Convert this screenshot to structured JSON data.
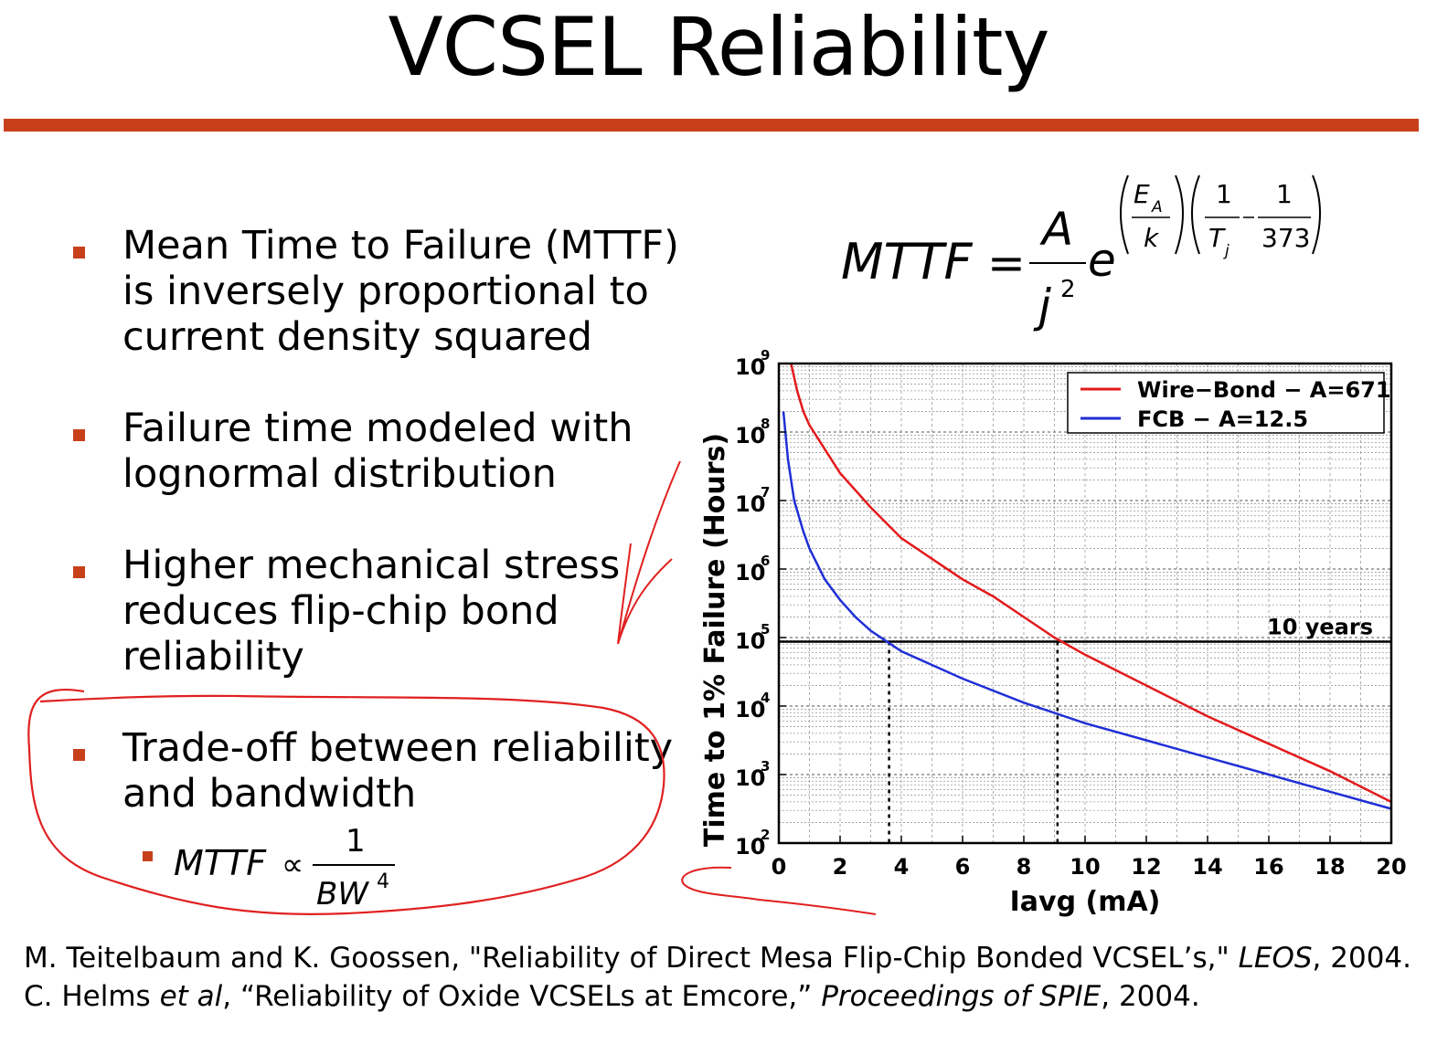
{
  "title": "VCSEL Reliability",
  "colors": {
    "accent": "#c8401a",
    "wire_bond": "#e31a1c",
    "fcb": "#1f2fd6",
    "annotation": "#e02020"
  },
  "bullets": [
    {
      "lines": [
        "Mean Time to Failure (MTTF)",
        "is inversely proportional to",
        "current density squared"
      ]
    },
    {
      "lines": [
        "Failure time modeled with",
        "lognormal distribution"
      ]
    },
    {
      "lines": [
        "Higher mechanical stress",
        "reduces flip-chip bond",
        "reliability"
      ]
    },
    {
      "lines": [
        "Trade-off between reliability",
        "and bandwidth"
      ]
    }
  ],
  "equation_main": {
    "lhs": "MTTF",
    "eq": "=",
    "num": "A",
    "den": "j",
    "den_exp": "2",
    "base": "e",
    "ea": "E",
    "ea_sub": "A",
    "k": "k",
    "one_a": "1",
    "tj": "T",
    "tj_sub": "j",
    "one_b": "1",
    "t373": "373"
  },
  "equation_sub": {
    "lhs": "MTTF",
    "prop": "∝",
    "num": "1",
    "den": "BW",
    "den_exp": "4"
  },
  "chart_data": {
    "type": "line",
    "title": "",
    "xlabel": "Iavg (mA)",
    "ylabel": "Time to 1% Failure (Hours)",
    "xlim": [
      0,
      20
    ],
    "ylim_log10": [
      2,
      9
    ],
    "yscale": "log",
    "x_ticks": [
      "0",
      "2",
      "4",
      "6",
      "8",
      "10",
      "12",
      "14",
      "16",
      "18",
      "20"
    ],
    "y_tick_base": "10",
    "y_tick_exps": [
      "2",
      "3",
      "4",
      "5",
      "6",
      "7",
      "8",
      "9"
    ],
    "grid": true,
    "legend_position": "top-right",
    "series": [
      {
        "name": "Wire−Bond − A=671",
        "color": "#e31a1c",
        "x": [
          0.4,
          0.6,
          0.8,
          1.0,
          1.5,
          2.0,
          3.0,
          4.0,
          5.0,
          6.0,
          7.0,
          8.0,
          9.0,
          10.0,
          12.0,
          14.0,
          16.0,
          18.0,
          20.0
        ],
        "log10_y": [
          9.0,
          8.6,
          8.3,
          8.1,
          7.75,
          7.4,
          6.9,
          6.45,
          6.15,
          5.85,
          5.6,
          5.3,
          5.0,
          4.75,
          4.3,
          3.85,
          3.45,
          3.05,
          2.6
        ]
      },
      {
        "name": "FCB − A=12.5",
        "color": "#1f2fd6",
        "x": [
          0.15,
          0.3,
          0.5,
          0.8,
          1.0,
          1.5,
          2.0,
          2.5,
          3.0,
          3.5,
          4.0,
          5.0,
          6.0,
          8.0,
          9.0,
          10.0,
          12.0,
          14.0,
          16.0,
          18.0,
          20.0
        ],
        "log10_y": [
          8.3,
          7.6,
          7.0,
          6.55,
          6.3,
          5.85,
          5.55,
          5.3,
          5.1,
          4.95,
          4.8,
          4.6,
          4.4,
          4.05,
          3.9,
          3.75,
          3.5,
          3.25,
          3.0,
          2.75,
          2.5
        ]
      }
    ],
    "reference_line": {
      "label": "10 years",
      "log10_y": 4.94
    },
    "intersections_x": [
      3.6,
      9.1
    ]
  },
  "references": [
    {
      "pre": "M. Teitelbaum and K. Goossen, \"Reliability of Direct Mesa Flip-Chip Bonded VCSEL’s,\" ",
      "ital": "LEOS",
      "post": ", 2004."
    },
    {
      "pre": "C. Helms ",
      "ital": "et al",
      "mid": ", “Reliability of Oxide VCSELs at Emcore,” ",
      "ital2": "Proceedings of SPIE",
      "post": ", 2004."
    }
  ]
}
